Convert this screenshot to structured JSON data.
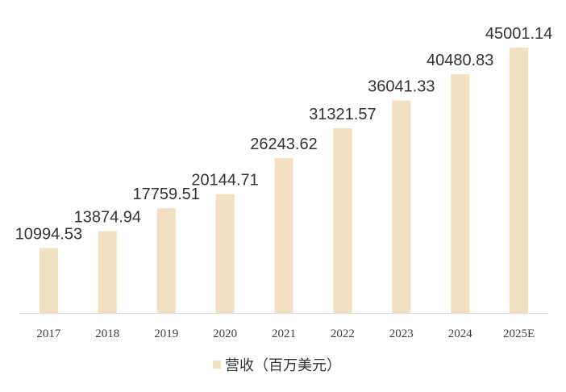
{
  "chart_data": {
    "type": "bar",
    "categories": [
      "2017",
      "2018",
      "2019",
      "2020",
      "2021",
      "2022",
      "2023",
      "2024",
      "2025E"
    ],
    "series": [
      {
        "name": "营收（百万美元）",
        "values": [
          10994.53,
          13874.94,
          17759.51,
          20144.71,
          26243.62,
          31321.57,
          36041.33,
          40480.83,
          45001.14
        ],
        "labels": [
          "10994.53",
          "13874.94",
          "17759.51",
          "20144.71",
          "26243.62",
          "31321.57",
          "36041.33",
          "40480.83",
          "45001.14"
        ]
      }
    ],
    "ylim": [
      0,
      45001.14
    ],
    "grid": false,
    "legend_position": "bottom",
    "colors": {
      "bar": "#F2E0C2",
      "axis": "#D9D9D9",
      "text": "#333333"
    }
  }
}
